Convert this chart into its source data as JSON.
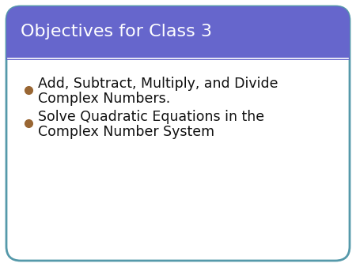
{
  "title": "Objectives for Class 3",
  "title_color": "#ffffff",
  "title_bg_color": "#6666cc",
  "title_fontsize": 16,
  "bullet_color": "#996633",
  "bullet_text_color": "#111111",
  "bullet_fontsize": 12.5,
  "bullet1_line1": "Add, Subtract, Multiply, and Divide",
  "bullet1_line2": "Complex Numbers.",
  "bullet2_line1": "Solve Quadratic Equations in the",
  "bullet2_line2": "Complex Number System",
  "bg_color": "#ffffff",
  "border_color": "#5599aa",
  "outer_bg": "#ffffff",
  "fig_width": 4.5,
  "fig_height": 3.38,
  "dpi": 100
}
